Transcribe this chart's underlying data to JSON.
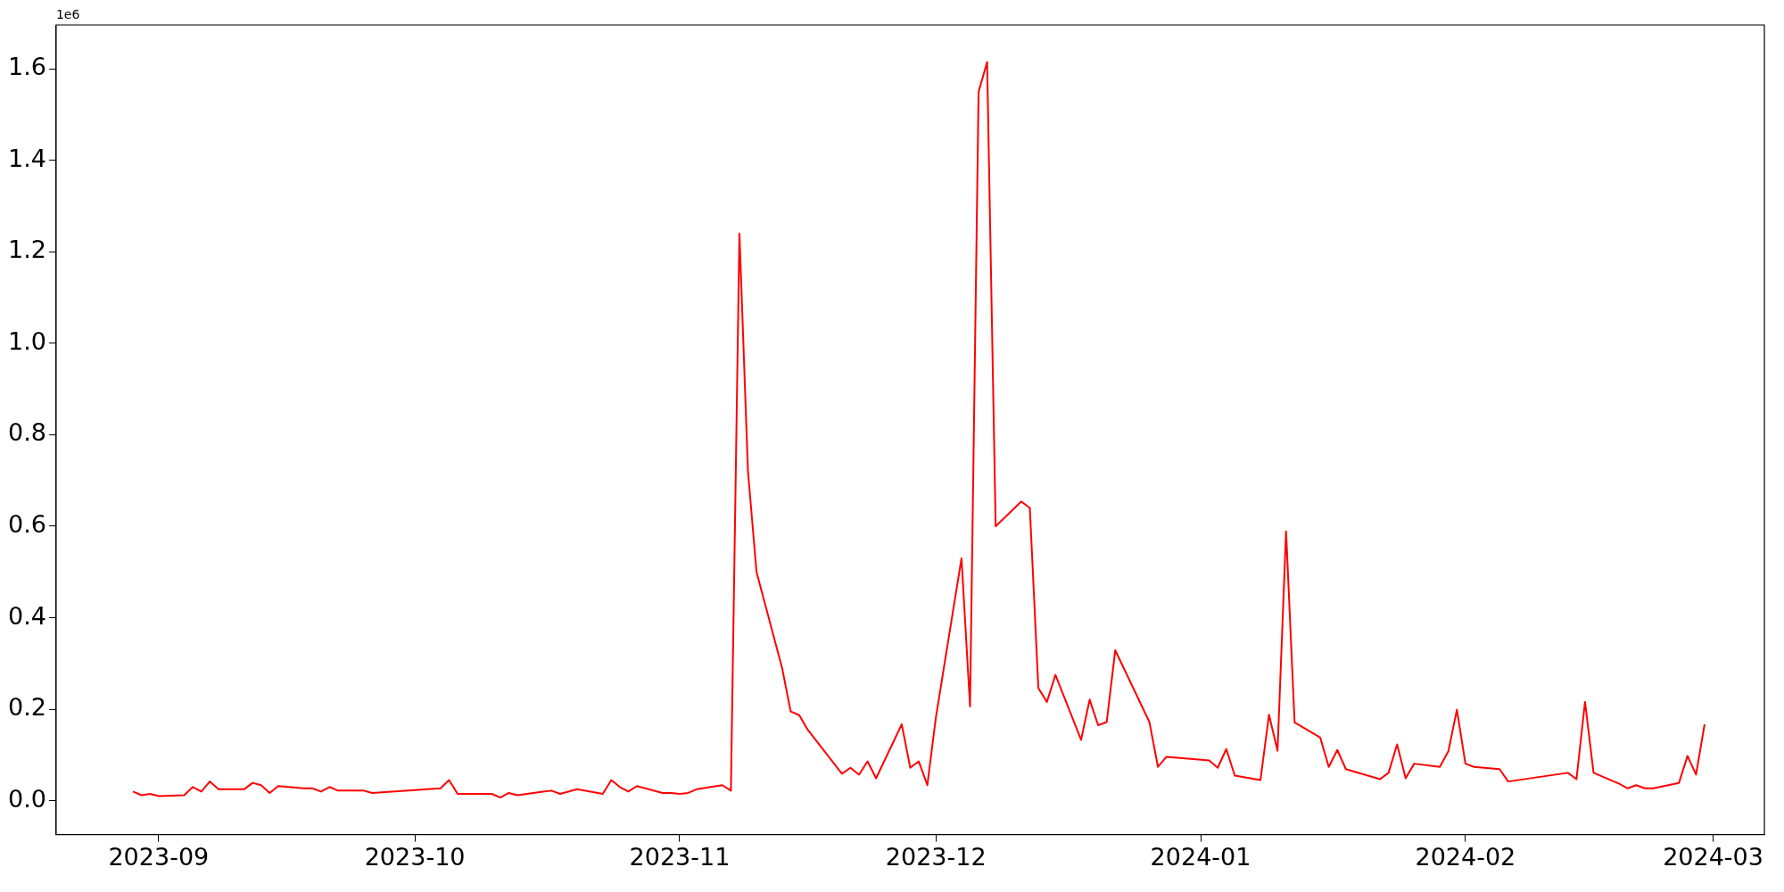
{
  "chart_data": {
    "type": "line",
    "annotations": [
      "1e6"
    ],
    "x": [
      "2023-08-29",
      "2023-08-30",
      "2023-08-31",
      "2023-09-01",
      "2023-09-04",
      "2023-09-05",
      "2023-09-06",
      "2023-09-07",
      "2023-09-08",
      "2023-09-11",
      "2023-09-12",
      "2023-09-13",
      "2023-09-14",
      "2023-09-15",
      "2023-09-18",
      "2023-09-19",
      "2023-09-20",
      "2023-09-21",
      "2023-09-22",
      "2023-09-25",
      "2023-09-26",
      "2023-10-04",
      "2023-10-05",
      "2023-10-06",
      "2023-10-10",
      "2023-10-11",
      "2023-10-12",
      "2023-10-13",
      "2023-10-16",
      "2023-10-17",
      "2023-10-18",
      "2023-10-20",
      "2023-10-23",
      "2023-10-24",
      "2023-10-25",
      "2023-10-26",
      "2023-10-27",
      "2023-10-30",
      "2023-10-31",
      "2023-11-01",
      "2023-11-02",
      "2023-11-03",
      "2023-11-06",
      "2023-11-07",
      "2023-11-08",
      "2023-11-09",
      "2023-11-10",
      "2023-11-13",
      "2023-11-14",
      "2023-11-15",
      "2023-11-16",
      "2023-11-20",
      "2023-11-21",
      "2023-11-22",
      "2023-11-23",
      "2023-11-24",
      "2023-11-27",
      "2023-11-28",
      "2023-11-29",
      "2023-11-30",
      "2023-12-01",
      "2023-12-04",
      "2023-12-05",
      "2023-12-06",
      "2023-12-07",
      "2023-12-08",
      "2023-12-11",
      "2023-12-12",
      "2023-12-13",
      "2023-12-14",
      "2023-12-15",
      "2023-12-18",
      "2023-12-19",
      "2023-12-20",
      "2023-12-21",
      "2023-12-22",
      "2023-12-26",
      "2023-12-27",
      "2023-12-28",
      "2024-01-02",
      "2024-01-03",
      "2024-01-04",
      "2024-01-05",
      "2024-01-08",
      "2024-01-09",
      "2024-01-10",
      "2024-01-11",
      "2024-01-12",
      "2024-01-15",
      "2024-01-16",
      "2024-01-17",
      "2024-01-18",
      "2024-01-22",
      "2024-01-23",
      "2024-01-24",
      "2024-01-25",
      "2024-01-26",
      "2024-01-29",
      "2024-01-30",
      "2024-01-31",
      "2024-02-01",
      "2024-02-02",
      "2024-02-05",
      "2024-02-06",
      "2024-02-13",
      "2024-02-14",
      "2024-02-15",
      "2024-02-16",
      "2024-02-19",
      "2024-02-20",
      "2024-02-21",
      "2024-02-22",
      "2024-02-23",
      "2024-02-26",
      "2024-02-27",
      "2024-02-28",
      "2024-02-29"
    ],
    "series": [
      {
        "color": "#ff0000",
        "values": [
          0.02,
          0.012,
          0.015,
          0.01,
          0.012,
          0.03,
          0.02,
          0.042,
          0.025,
          0.025,
          0.039,
          0.034,
          0.017,
          0.032,
          0.027,
          0.027,
          0.02,
          0.03,
          0.022,
          0.022,
          0.017,
          0.027,
          0.045,
          0.015,
          0.015,
          0.007,
          0.017,
          0.012,
          0.02,
          0.022,
          0.015,
          0.025,
          0.015,
          0.045,
          0.03,
          0.02,
          0.032,
          0.017,
          0.017,
          0.015,
          0.017,
          0.025,
          0.034,
          0.022,
          1.24,
          0.72,
          0.5,
          0.29,
          0.195,
          0.187,
          0.155,
          0.059,
          0.072,
          0.057,
          0.086,
          0.049,
          0.167,
          0.072,
          0.086,
          0.034,
          0.182,
          0.53,
          0.206,
          1.55,
          1.615,
          0.6,
          0.654,
          0.64,
          0.246,
          0.216,
          0.275,
          0.133,
          0.221,
          0.165,
          0.172,
          0.329,
          0.172,
          0.074,
          0.096,
          0.088,
          0.072,
          0.113,
          0.055,
          0.045,
          0.188,
          0.109,
          0.589,
          0.171,
          0.138,
          0.074,
          0.111,
          0.069,
          0.047,
          0.061,
          0.123,
          0.049,
          0.081,
          0.074,
          0.108,
          0.199,
          0.081,
          0.074,
          0.069,
          0.042,
          0.061,
          0.047,
          0.216,
          0.061,
          0.037,
          0.027,
          0.034,
          0.027,
          0.027,
          0.039,
          0.098,
          0.057,
          0.167
        ]
      }
    ],
    "xlim": [
      "2023-08-20",
      "2024-03-07"
    ],
    "xticks": [
      "2023-09",
      "2023-10",
      "2023-11",
      "2023-12",
      "2024-01",
      "2024-02",
      "2024-03"
    ],
    "ylim": [
      -0.074,
      1.696
    ],
    "yticks": [
      {
        "value": 0,
        "label": "0.0"
      },
      0.2,
      0.4,
      0.6,
      0.8,
      {
        "value": 1,
        "label": "1.0"
      },
      1.2,
      1.4,
      1.6
    ],
    "grid": false,
    "legend": false,
    "marker": "none",
    "line_style": "solid"
  }
}
